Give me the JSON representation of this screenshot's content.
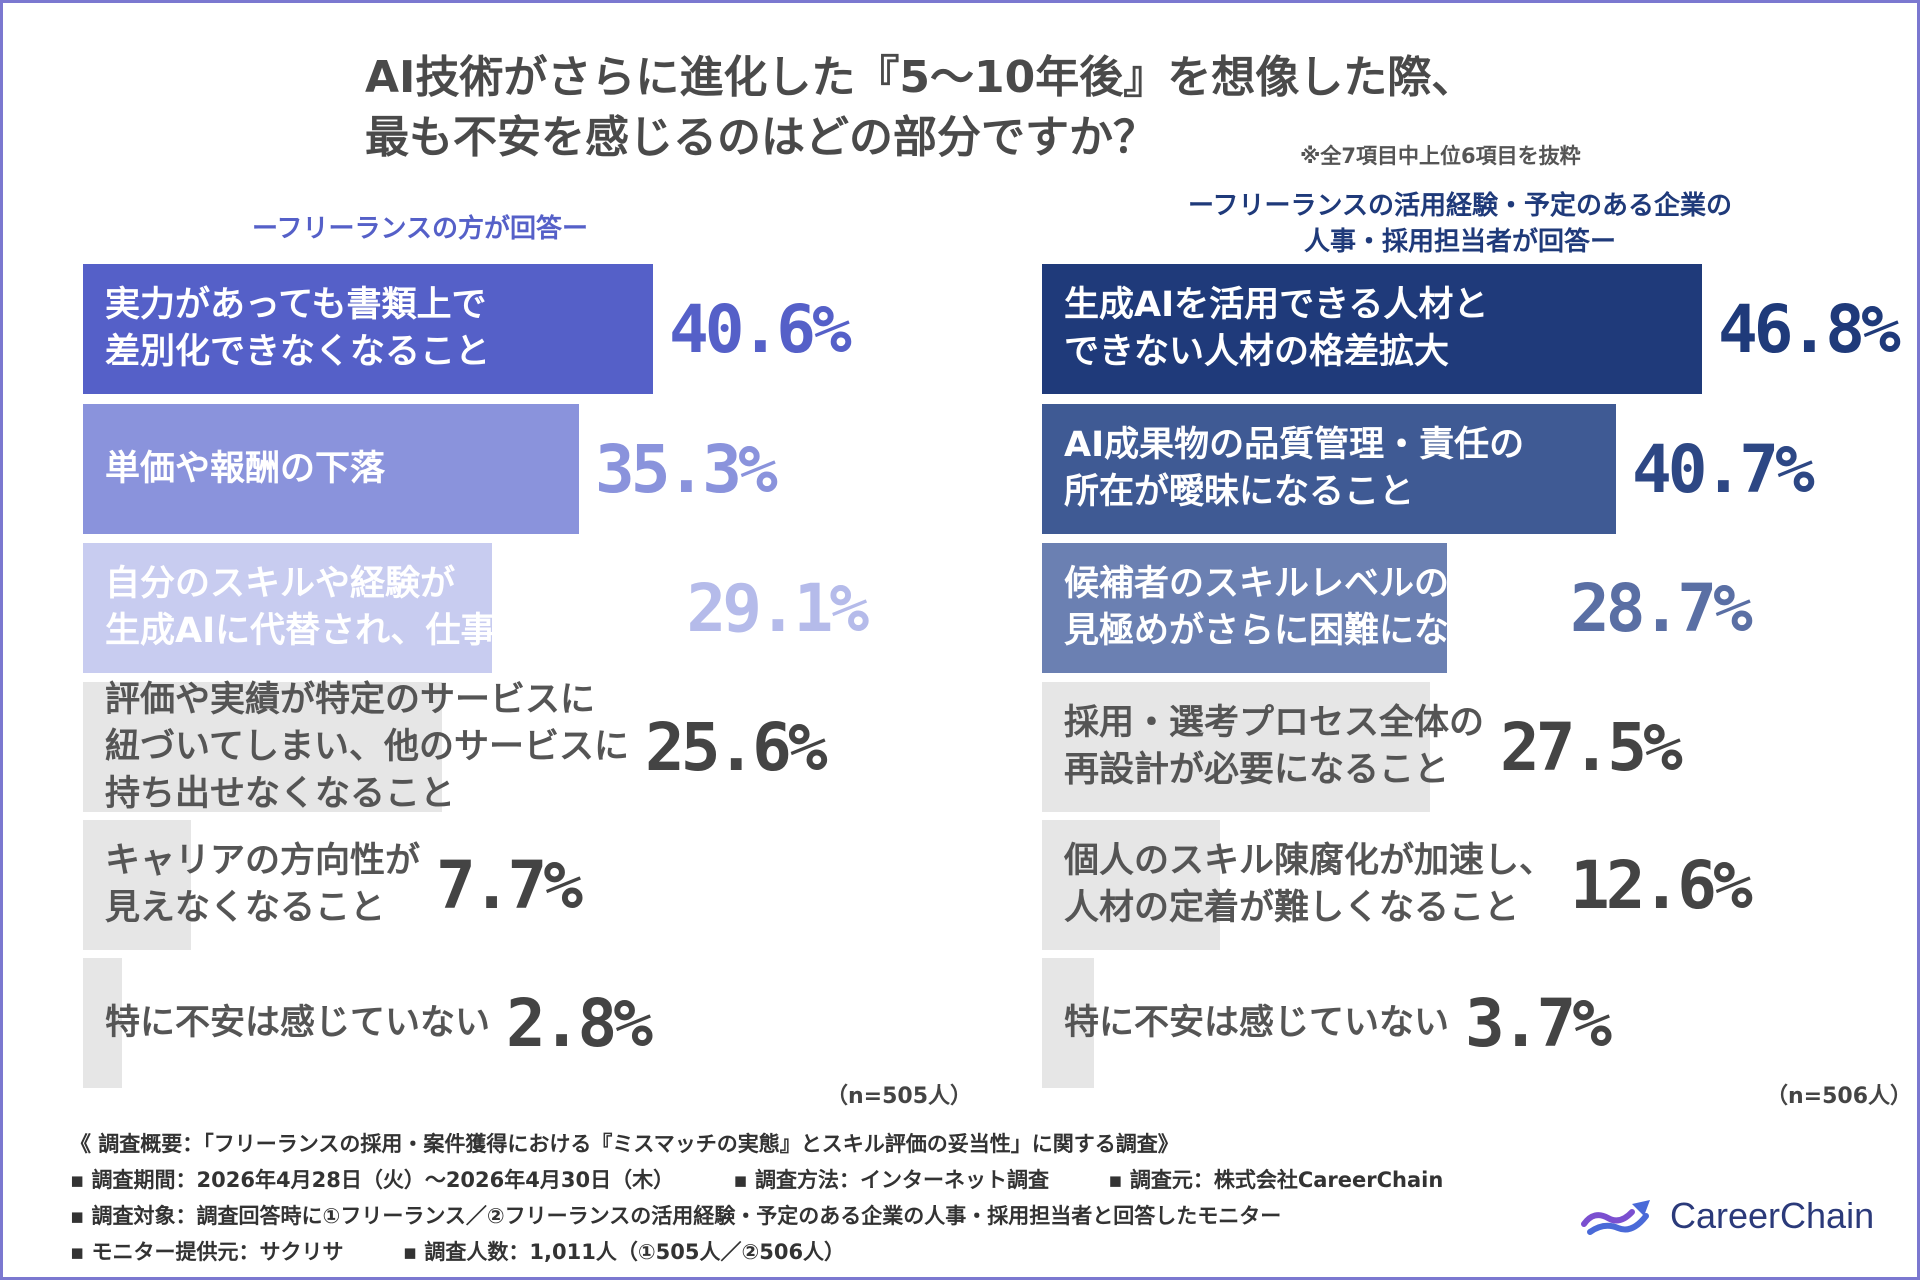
{
  "title": {
    "line1": "AI技術がさらに進化した『5〜10年後』を想像した際、",
    "line2": "最も不安を感じるのはどの部分ですか？",
    "note": "※全7項目中上位6項目を抜粋"
  },
  "colors": {
    "frame": "#7b78d0",
    "left_accent": "#5560c8",
    "right_accent": "#1f3a7a",
    "gray_bar": "#e6e6e6",
    "gray_text": "#444444"
  },
  "chart_data": [
    {
      "type": "bar",
      "orientation": "horizontal",
      "title": "ーフリーランスの方が回答ー",
      "title_lines": [
        "ーフリーランスの方が回答ー"
      ],
      "xlim": [
        0,
        50
      ],
      "unit": "%",
      "sample": "（n=505人）",
      "bars": [
        {
          "label_lines": [
            "実力があっても書類上で",
            "差別化できなくなること"
          ],
          "value": 40.6,
          "value_text": "40.6%",
          "color": "#5560c8",
          "label_color": "#ffffff",
          "value_color": "#5560c8"
        },
        {
          "label_lines": [
            "単価や報酬の下落"
          ],
          "value": 35.3,
          "value_text": "35.3%",
          "color": "#8a93dc",
          "label_color": "#ffffff",
          "value_color": "#8a93dc"
        },
        {
          "label_lines": [
            "自分のスキルや経験が",
            "生成AIに代替され、仕事が減ること"
          ],
          "value": 29.1,
          "value_text": "29.1%",
          "color": "#c8ccf0",
          "label_color": "#ffffff",
          "value_color": "#b5bbea"
        },
        {
          "label_lines": [
            "評価や実績が特定のサービスに",
            "紐づいてしまい、他のサービスに",
            "持ち出せなくなること"
          ],
          "value": 25.6,
          "value_text": "25.6%",
          "color": "#e6e6e6",
          "label_color": "#555555",
          "value_color": "#444444"
        },
        {
          "label_lines": [
            "キャリアの方向性が",
            "見えなくなること"
          ],
          "value": 7.7,
          "value_text": "7.7%",
          "color": "#e6e6e6",
          "label_color": "#555555",
          "value_color": "#444444"
        },
        {
          "label_lines": [
            "特に不安は感じていない"
          ],
          "value": 2.8,
          "value_text": "2.8%",
          "color": "#e6e6e6",
          "label_color": "#555555",
          "value_color": "#444444"
        }
      ]
    },
    {
      "type": "bar",
      "orientation": "horizontal",
      "title": "ーフリーランスの活用経験・予定のある企業の人事・採用担当者が回答ー",
      "title_lines": [
        "ーフリーランスの活用経験・予定のある企業の",
        "人事・採用担当者が回答ー"
      ],
      "xlim": [
        0,
        50
      ],
      "unit": "%",
      "sample": "（n=506人）",
      "bars": [
        {
          "label_lines": [
            "生成AIを活用できる人材と",
            "できない人材の格差拡大"
          ],
          "value": 46.8,
          "value_text": "46.8%",
          "color": "#1f3a7a",
          "label_color": "#ffffff",
          "value_color": "#1f3a7a"
        },
        {
          "label_lines": [
            "AI成果物の品質管理・責任の",
            "所在が曖昧になること"
          ],
          "value": 40.7,
          "value_text": "40.7%",
          "color": "#3f5a94",
          "label_color": "#ffffff",
          "value_color": "#2d4784"
        },
        {
          "label_lines": [
            "候補者のスキルレベルの",
            "見極めがさらに困難になること"
          ],
          "value": 28.7,
          "value_text": "28.7%",
          "color": "#6b80b2",
          "label_color": "#ffffff",
          "value_color": "#5a6fa4"
        },
        {
          "label_lines": [
            "採用・選考プロセス全体の",
            "再設計が必要になること"
          ],
          "value": 27.5,
          "value_text": "27.5%",
          "color": "#e6e6e6",
          "label_color": "#555555",
          "value_color": "#444444"
        },
        {
          "label_lines": [
            "個人のスキル陳腐化が加速し、",
            "人材の定着が難しくなること"
          ],
          "value": 12.6,
          "value_text": "12.6%",
          "color": "#e6e6e6",
          "label_color": "#555555",
          "value_color": "#444444"
        },
        {
          "label_lines": [
            "特に不安は感じていない"
          ],
          "value": 3.7,
          "value_text": "3.7%",
          "color": "#e6e6e6",
          "label_color": "#555555",
          "value_color": "#444444"
        }
      ]
    }
  ],
  "footer": {
    "summary": "《 調査概要：「フリーランスの採用・案件獲得における『ミスマッチの実態』とスキル評価の妥当性」に関する調査》",
    "period": "▪ 調査期間：2026年4月28日（火）〜2026年4月30日（木）",
    "method": "▪ 調査方法：インターネット調査",
    "organizer": "▪ 調査元：株式会社CareerChain",
    "target": "▪ 調査対象：調査回答時に①フリーランス／②フリーランスの活用経験・予定のある企業の人事・採用担当者と回答したモニター",
    "provider": "▪ モニター提供元：サクリサ",
    "respondents": "▪ 調査人数：1,011人（①505人／②506人）"
  },
  "logo": {
    "text": "CareerChain",
    "icon": "careerchain-logo-icon"
  }
}
